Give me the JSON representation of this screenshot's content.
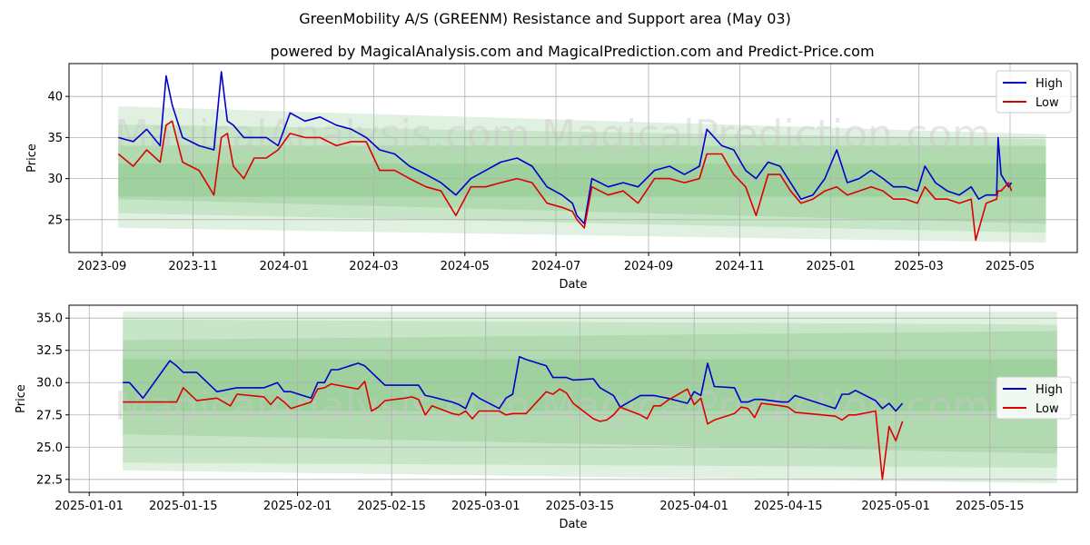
{
  "header": {
    "title": "GreenMobility A/S (GREENM) Resistance and Support area (May 03)",
    "subtitle": "powered by MagicalAnalysis.com and MagicalPrediction.com and Predict-Price.com"
  },
  "watermarks": [
    "MagicalAnalysis.com",
    "MagicalPrediction.com"
  ],
  "colors": {
    "high": "#0000cc",
    "low": "#dd0000",
    "band": "#2e9a2e"
  },
  "chart_data": [
    {
      "type": "line",
      "title": "",
      "xlabel": "Date",
      "ylabel": "Price",
      "x_ticks": [
        "2023-09",
        "2023-11",
        "2024-01",
        "2024-03",
        "2024-05",
        "2024-07",
        "2024-09",
        "2024-11",
        "2025-01",
        "2025-03",
        "2025-05"
      ],
      "y_ticks": [
        25,
        30,
        35,
        40
      ],
      "xlim": [
        "2023-08-10",
        "2025-06-15"
      ],
      "ylim": [
        21,
        44
      ],
      "grid": true,
      "legend": "top-right",
      "bands": [
        {
          "x": [
            "2023-09-12",
            "2025-05-25"
          ],
          "upper": [
            38.8,
            35.4
          ],
          "lower": [
            24.0,
            22.2
          ]
        },
        {
          "x": [
            "2023-09-12",
            "2025-05-25"
          ],
          "upper": [
            36.6,
            34.8
          ],
          "lower": [
            25.8,
            23.4
          ]
        },
        {
          "x": [
            "2023-09-12",
            "2025-05-25"
          ],
          "upper": [
            34.0,
            34.0
          ],
          "lower": [
            27.5,
            24.5
          ]
        },
        {
          "x": [
            "2023-09-12",
            "2025-05-25"
          ],
          "upper": [
            31.8,
            31.8
          ],
          "lower": [
            27.8,
            27.8
          ]
        }
      ],
      "series": [
        {
          "name": "High",
          "x": [
            "2023-09-12",
            "2023-09-22",
            "2023-10-01",
            "2023-10-10",
            "2023-10-14",
            "2023-10-18",
            "2023-10-25",
            "2023-11-05",
            "2023-11-15",
            "2023-11-20",
            "2023-11-24",
            "2023-11-28",
            "2023-12-05",
            "2023-12-12",
            "2023-12-20",
            "2023-12-28",
            "2024-01-05",
            "2024-01-15",
            "2024-01-25",
            "2024-02-05",
            "2024-02-15",
            "2024-02-25",
            "2024-03-05",
            "2024-03-15",
            "2024-03-25",
            "2024-04-05",
            "2024-04-15",
            "2024-04-25",
            "2024-05-05",
            "2024-05-15",
            "2024-05-25",
            "2024-06-05",
            "2024-06-15",
            "2024-06-25",
            "2024-07-05",
            "2024-07-12",
            "2024-07-15",
            "2024-07-20",
            "2024-07-25",
            "2024-08-05",
            "2024-08-15",
            "2024-08-25",
            "2024-09-05",
            "2024-09-15",
            "2024-09-25",
            "2024-10-05",
            "2024-10-10",
            "2024-10-20",
            "2024-10-28",
            "2024-11-05",
            "2024-11-12",
            "2024-11-20",
            "2024-11-28",
            "2024-12-05",
            "2024-12-12",
            "2024-12-20",
            "2024-12-28",
            "2025-01-05",
            "2025-01-12",
            "2025-01-20",
            "2025-01-28",
            "2025-02-05",
            "2025-02-12",
            "2025-02-20",
            "2025-02-28",
            "2025-03-05",
            "2025-03-12",
            "2025-03-20",
            "2025-03-28",
            "2025-04-05",
            "2025-04-10",
            "2025-04-15",
            "2025-04-22",
            "2025-04-23",
            "2025-04-25",
            "2025-04-30",
            "2025-05-02"
          ],
          "y": [
            35.0,
            34.5,
            36.0,
            34.0,
            42.5,
            39.0,
            35.0,
            34.0,
            33.5,
            43.0,
            37.0,
            36.5,
            35.0,
            35.0,
            35.0,
            34.0,
            38.0,
            37.0,
            37.5,
            36.5,
            36.0,
            35.0,
            33.5,
            33.0,
            31.5,
            30.5,
            29.5,
            28.0,
            30.0,
            31.0,
            32.0,
            32.5,
            31.5,
            29.0,
            28.0,
            27.0,
            25.5,
            24.5,
            30.0,
            29.0,
            29.5,
            29.0,
            31.0,
            31.5,
            30.5,
            31.5,
            36.0,
            34.0,
            33.5,
            31.0,
            30.0,
            32.0,
            31.5,
            29.5,
            27.5,
            28.0,
            30.0,
            33.5,
            29.5,
            30.0,
            31.0,
            30.0,
            29.0,
            29.0,
            28.5,
            31.5,
            29.5,
            28.5,
            28.0,
            29.0,
            27.5,
            28.0,
            28.0,
            35.0,
            30.5,
            29.0,
            29.5
          ]
        },
        {
          "name": "Low",
          "x": [
            "2023-09-12",
            "2023-09-22",
            "2023-10-01",
            "2023-10-10",
            "2023-10-14",
            "2023-10-18",
            "2023-10-25",
            "2023-11-05",
            "2023-11-15",
            "2023-11-20",
            "2023-11-24",
            "2023-11-28",
            "2023-12-05",
            "2023-12-12",
            "2023-12-20",
            "2023-12-28",
            "2024-01-05",
            "2024-01-15",
            "2024-01-25",
            "2024-02-05",
            "2024-02-15",
            "2024-02-25",
            "2024-03-05",
            "2024-03-15",
            "2024-03-25",
            "2024-04-05",
            "2024-04-15",
            "2024-04-25",
            "2024-05-05",
            "2024-05-15",
            "2024-05-25",
            "2024-06-05",
            "2024-06-15",
            "2024-06-25",
            "2024-07-05",
            "2024-07-12",
            "2024-07-15",
            "2024-07-20",
            "2024-07-25",
            "2024-08-05",
            "2024-08-15",
            "2024-08-25",
            "2024-09-05",
            "2024-09-15",
            "2024-09-25",
            "2024-10-05",
            "2024-10-10",
            "2024-10-20",
            "2024-10-28",
            "2024-11-05",
            "2024-11-12",
            "2024-11-20",
            "2024-11-28",
            "2024-12-05",
            "2024-12-12",
            "2024-12-20",
            "2024-12-28",
            "2025-01-05",
            "2025-01-12",
            "2025-01-20",
            "2025-01-28",
            "2025-02-05",
            "2025-02-12",
            "2025-02-20",
            "2025-02-28",
            "2025-03-05",
            "2025-03-12",
            "2025-03-20",
            "2025-03-28",
            "2025-04-05",
            "2025-04-08",
            "2025-04-15",
            "2025-04-22",
            "2025-04-23",
            "2025-04-25",
            "2025-04-30",
            "2025-05-02"
          ],
          "y": [
            33.0,
            31.5,
            33.5,
            32.0,
            36.5,
            37.0,
            32.0,
            31.0,
            28.0,
            35.0,
            35.5,
            31.5,
            30.0,
            32.5,
            32.5,
            33.5,
            35.5,
            35.0,
            35.0,
            34.0,
            34.5,
            34.5,
            31.0,
            31.0,
            30.0,
            29.0,
            28.5,
            25.5,
            29.0,
            29.0,
            29.5,
            30.0,
            29.5,
            27.0,
            26.5,
            26.0,
            25.0,
            24.0,
            29.0,
            28.0,
            28.5,
            27.0,
            30.0,
            30.0,
            29.5,
            30.0,
            33.0,
            33.0,
            30.5,
            29.0,
            25.5,
            30.5,
            30.5,
            28.5,
            27.0,
            27.5,
            28.5,
            29.0,
            28.0,
            28.5,
            29.0,
            28.5,
            27.5,
            27.5,
            27.0,
            29.0,
            27.5,
            27.5,
            27.0,
            27.5,
            22.5,
            27.0,
            27.5,
            28.5,
            28.5,
            29.5,
            28.5
          ]
        }
      ]
    },
    {
      "type": "line",
      "title": "",
      "xlabel": "Date",
      "ylabel": "Price",
      "x_ticks": [
        "2025-01-01",
        "2025-01-15",
        "2025-02-01",
        "2025-02-15",
        "2025-03-01",
        "2025-03-15",
        "2025-04-01",
        "2025-04-15",
        "2025-05-01",
        "2025-05-15"
      ],
      "y_ticks": [
        22.5,
        25.0,
        27.5,
        30.0,
        32.5,
        35.0
      ],
      "xlim": [
        "2024-12-29",
        "2025-05-28"
      ],
      "ylim": [
        21.5,
        36.0
      ],
      "grid": true,
      "legend": "center-right",
      "bands": [
        {
          "x": [
            "2025-01-06",
            "2025-05-25"
          ],
          "upper": [
            35.5,
            35.5
          ],
          "lower": [
            23.2,
            22.2
          ]
        },
        {
          "x": [
            "2025-01-06",
            "2025-05-25"
          ],
          "upper": [
            34.9,
            34.5
          ],
          "lower": [
            23.8,
            23.4
          ]
        },
        {
          "x": [
            "2025-01-06",
            "2025-05-25"
          ],
          "upper": [
            33.3,
            34.0
          ],
          "lower": [
            26.0,
            24.5
          ]
        },
        {
          "x": [
            "2025-01-06",
            "2025-05-25"
          ],
          "upper": [
            31.8,
            31.8
          ],
          "lower": [
            27.8,
            27.8
          ]
        }
      ],
      "series": [
        {
          "name": "High",
          "x": [
            "2025-01-06",
            "2025-01-07",
            "2025-01-09",
            "2025-01-13",
            "2025-01-14",
            "2025-01-15",
            "2025-01-17",
            "2025-01-20",
            "2025-01-21",
            "2025-01-22",
            "2025-01-23",
            "2025-01-27",
            "2025-01-28",
            "2025-01-29",
            "2025-01-30",
            "2025-01-31",
            "2025-02-03",
            "2025-02-04",
            "2025-02-05",
            "2025-02-06",
            "2025-02-07",
            "2025-02-10",
            "2025-02-11",
            "2025-02-12",
            "2025-02-13",
            "2025-02-14",
            "2025-02-17",
            "2025-02-18",
            "2025-02-19",
            "2025-02-20",
            "2025-02-21",
            "2025-02-24",
            "2025-02-25",
            "2025-02-26",
            "2025-02-27",
            "2025-02-28",
            "2025-03-03",
            "2025-03-04",
            "2025-03-05",
            "2025-03-06",
            "2025-03-07",
            "2025-03-10",
            "2025-03-11",
            "2025-03-12",
            "2025-03-13",
            "2025-03-14",
            "2025-03-17",
            "2025-03-18",
            "2025-03-19",
            "2025-03-20",
            "2025-03-21",
            "2025-03-24",
            "2025-03-25",
            "2025-03-26",
            "2025-03-27",
            "2025-03-28",
            "2025-03-31",
            "2025-04-01",
            "2025-04-02",
            "2025-04-03",
            "2025-04-04",
            "2025-04-07",
            "2025-04-08",
            "2025-04-09",
            "2025-04-10",
            "2025-04-11",
            "2025-04-14",
            "2025-04-15",
            "2025-04-16",
            "2025-04-22",
            "2025-04-23",
            "2025-04-24",
            "2025-04-25",
            "2025-04-28",
            "2025-04-29",
            "2025-04-30",
            "2025-05-01",
            "2025-05-02"
          ],
          "y": [
            30.0,
            30.0,
            28.8,
            31.7,
            31.3,
            30.8,
            30.8,
            29.3,
            29.4,
            29.5,
            29.6,
            29.6,
            29.8,
            30.0,
            29.3,
            29.3,
            28.8,
            30.0,
            30.0,
            31.0,
            31.0,
            31.5,
            31.3,
            30.8,
            30.3,
            29.8,
            29.8,
            29.8,
            29.8,
            29.0,
            28.9,
            28.5,
            28.3,
            28.0,
            29.2,
            28.8,
            28.0,
            28.8,
            29.1,
            32.0,
            31.8,
            31.3,
            30.4,
            30.4,
            30.4,
            30.2,
            30.3,
            29.6,
            29.3,
            29.0,
            28.1,
            29.0,
            29.0,
            29.0,
            28.9,
            28.8,
            28.4,
            29.3,
            29.0,
            31.5,
            29.7,
            29.6,
            28.5,
            28.5,
            28.7,
            28.7,
            28.5,
            28.5,
            29.0,
            28.0,
            29.1,
            29.1,
            29.4,
            28.6,
            28.0,
            28.4,
            27.8,
            28.4
          ]
        },
        {
          "name": "Low",
          "x": [
            "2025-01-06",
            "2025-01-07",
            "2025-01-09",
            "2025-01-13",
            "2025-01-14",
            "2025-01-15",
            "2025-01-17",
            "2025-01-20",
            "2025-01-21",
            "2025-01-22",
            "2025-01-23",
            "2025-01-27",
            "2025-01-28",
            "2025-01-29",
            "2025-01-30",
            "2025-01-31",
            "2025-02-03",
            "2025-02-04",
            "2025-02-05",
            "2025-02-06",
            "2025-02-07",
            "2025-02-10",
            "2025-02-11",
            "2025-02-12",
            "2025-02-13",
            "2025-02-14",
            "2025-02-17",
            "2025-02-18",
            "2025-02-19",
            "2025-02-20",
            "2025-02-21",
            "2025-02-24",
            "2025-02-25",
            "2025-02-26",
            "2025-02-27",
            "2025-02-28",
            "2025-03-03",
            "2025-03-04",
            "2025-03-05",
            "2025-03-06",
            "2025-03-07",
            "2025-03-10",
            "2025-03-11",
            "2025-03-12",
            "2025-03-13",
            "2025-03-14",
            "2025-03-17",
            "2025-03-18",
            "2025-03-19",
            "2025-03-20",
            "2025-03-21",
            "2025-03-24",
            "2025-03-25",
            "2025-03-26",
            "2025-03-27",
            "2025-03-28",
            "2025-03-31",
            "2025-04-01",
            "2025-04-02",
            "2025-04-03",
            "2025-04-04",
            "2025-04-07",
            "2025-04-08",
            "2025-04-09",
            "2025-04-10",
            "2025-04-11",
            "2025-04-14",
            "2025-04-15",
            "2025-04-16",
            "2025-04-22",
            "2025-04-23",
            "2025-04-24",
            "2025-04-25",
            "2025-04-28",
            "2025-04-29",
            "2025-04-30",
            "2025-05-01",
            "2025-05-02"
          ],
          "y": [
            28.5,
            28.5,
            28.5,
            28.5,
            28.5,
            29.6,
            28.6,
            28.8,
            28.5,
            28.2,
            29.1,
            28.9,
            28.3,
            28.9,
            28.5,
            28.0,
            28.5,
            29.5,
            29.6,
            29.9,
            29.8,
            29.5,
            30.1,
            27.8,
            28.1,
            28.6,
            28.8,
            28.9,
            28.7,
            27.5,
            28.2,
            27.6,
            27.5,
            27.8,
            27.2,
            27.8,
            27.8,
            27.5,
            27.6,
            27.6,
            27.6,
            29.3,
            29.1,
            29.5,
            29.2,
            28.4,
            27.2,
            27.0,
            27.1,
            27.5,
            28.1,
            27.5,
            27.2,
            28.2,
            28.2,
            28.6,
            29.5,
            28.3,
            28.8,
            26.8,
            27.1,
            27.6,
            28.1,
            28.0,
            27.3,
            28.4,
            28.2,
            28.1,
            27.7,
            27.4,
            27.1,
            27.5,
            27.5,
            27.8,
            22.5,
            26.6,
            25.5,
            27.0
          ]
        }
      ]
    }
  ],
  "legend": {
    "high_label": "High",
    "low_label": "Low"
  }
}
